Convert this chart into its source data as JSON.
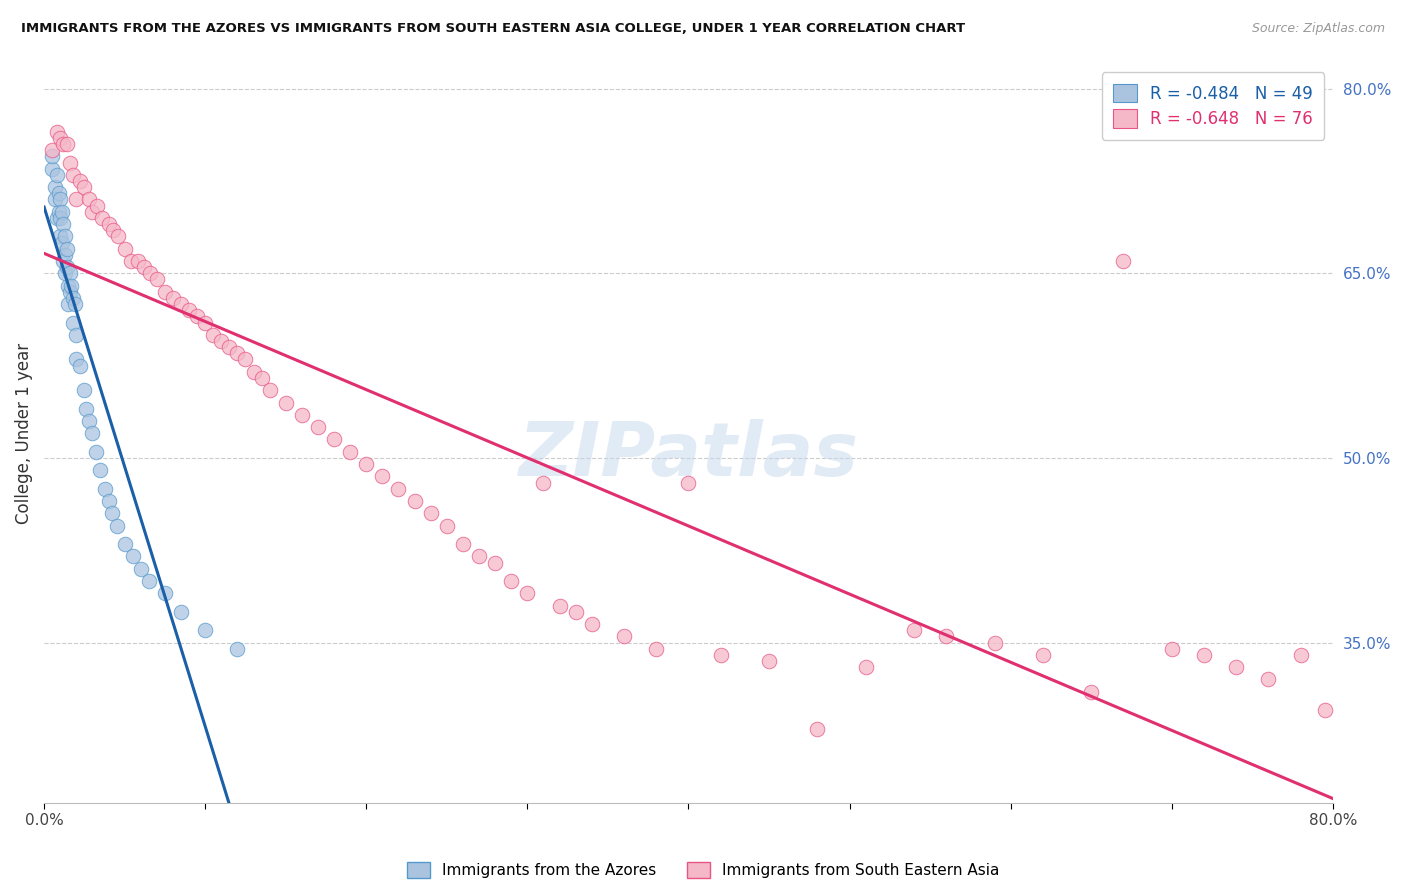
{
  "title": "IMMIGRANTS FROM THE AZORES VS IMMIGRANTS FROM SOUTH EASTERN ASIA COLLEGE, UNDER 1 YEAR CORRELATION CHART",
  "source": "Source: ZipAtlas.com",
  "ylabel": "College, Under 1 year",
  "legend_label_blue": "Immigrants from the Azores",
  "legend_label_pink": "Immigrants from South Eastern Asia",
  "R_blue": -0.484,
  "N_blue": 49,
  "R_pink": -0.648,
  "N_pink": 76,
  "xlim": [
    0.0,
    0.8
  ],
  "ylim": [
    0.22,
    0.82
  ],
  "xticks": [
    0.0,
    0.1,
    0.2,
    0.3,
    0.4,
    0.5,
    0.6,
    0.7,
    0.8
  ],
  "ytick_right": [
    0.35,
    0.5,
    0.65,
    0.8
  ],
  "ytick_right_labels": [
    "35.0%",
    "50.0%",
    "65.0%",
    "80.0%"
  ],
  "color_blue_fill": "#aac4e0",
  "color_pink_fill": "#f5b8c8",
  "color_blue_edge": "#5599cc",
  "color_pink_edge": "#e85585",
  "color_blue_line": "#1a5fa8",
  "color_pink_line": "#e03070",
  "color_dashed": "#bbbbbb",
  "watermark": "ZIPatlas",
  "blue_scatter_x": [
    0.005,
    0.005,
    0.007,
    0.007,
    0.008,
    0.008,
    0.009,
    0.009,
    0.01,
    0.01,
    0.01,
    0.011,
    0.011,
    0.012,
    0.012,
    0.013,
    0.013,
    0.013,
    0.014,
    0.014,
    0.015,
    0.015,
    0.016,
    0.016,
    0.017,
    0.018,
    0.018,
    0.019,
    0.02,
    0.02,
    0.022,
    0.025,
    0.026,
    0.028,
    0.03,
    0.032,
    0.035,
    0.038,
    0.04,
    0.042,
    0.045,
    0.05,
    0.055,
    0.06,
    0.065,
    0.075,
    0.085,
    0.1,
    0.12
  ],
  "blue_scatter_y": [
    0.735,
    0.745,
    0.72,
    0.71,
    0.73,
    0.695,
    0.715,
    0.7,
    0.71,
    0.695,
    0.68,
    0.7,
    0.675,
    0.69,
    0.66,
    0.68,
    0.665,
    0.65,
    0.67,
    0.655,
    0.64,
    0.625,
    0.65,
    0.635,
    0.64,
    0.63,
    0.61,
    0.625,
    0.6,
    0.58,
    0.575,
    0.555,
    0.54,
    0.53,
    0.52,
    0.505,
    0.49,
    0.475,
    0.465,
    0.455,
    0.445,
    0.43,
    0.42,
    0.41,
    0.4,
    0.39,
    0.375,
    0.36,
    0.345
  ],
  "pink_scatter_x": [
    0.005,
    0.008,
    0.01,
    0.012,
    0.014,
    0.016,
    0.018,
    0.02,
    0.022,
    0.025,
    0.028,
    0.03,
    0.033,
    0.036,
    0.04,
    0.043,
    0.046,
    0.05,
    0.054,
    0.058,
    0.062,
    0.066,
    0.07,
    0.075,
    0.08,
    0.085,
    0.09,
    0.095,
    0.1,
    0.105,
    0.11,
    0.115,
    0.12,
    0.125,
    0.13,
    0.135,
    0.14,
    0.15,
    0.16,
    0.17,
    0.18,
    0.19,
    0.2,
    0.21,
    0.22,
    0.23,
    0.24,
    0.25,
    0.26,
    0.27,
    0.28,
    0.29,
    0.3,
    0.31,
    0.32,
    0.33,
    0.34,
    0.36,
    0.38,
    0.4,
    0.42,
    0.45,
    0.48,
    0.51,
    0.54,
    0.56,
    0.59,
    0.62,
    0.65,
    0.67,
    0.7,
    0.72,
    0.74,
    0.76,
    0.78,
    0.795
  ],
  "pink_scatter_y": [
    0.75,
    0.765,
    0.76,
    0.755,
    0.755,
    0.74,
    0.73,
    0.71,
    0.725,
    0.72,
    0.71,
    0.7,
    0.705,
    0.695,
    0.69,
    0.685,
    0.68,
    0.67,
    0.66,
    0.66,
    0.655,
    0.65,
    0.645,
    0.635,
    0.63,
    0.625,
    0.62,
    0.615,
    0.61,
    0.6,
    0.595,
    0.59,
    0.585,
    0.58,
    0.57,
    0.565,
    0.555,
    0.545,
    0.535,
    0.525,
    0.515,
    0.505,
    0.495,
    0.485,
    0.475,
    0.465,
    0.455,
    0.445,
    0.43,
    0.42,
    0.415,
    0.4,
    0.39,
    0.48,
    0.38,
    0.375,
    0.365,
    0.355,
    0.345,
    0.48,
    0.34,
    0.335,
    0.28,
    0.33,
    0.36,
    0.355,
    0.35,
    0.34,
    0.31,
    0.66,
    0.345,
    0.34,
    0.33,
    0.32,
    0.34,
    0.295
  ]
}
